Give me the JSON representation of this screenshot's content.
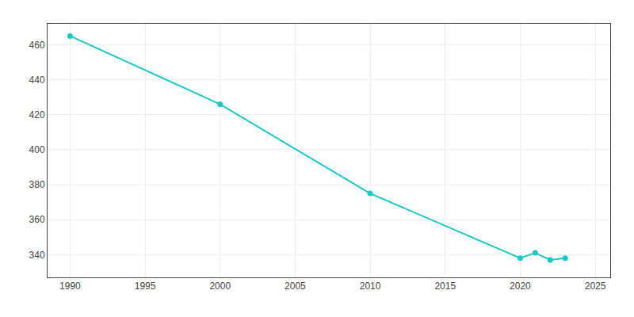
{
  "chart_data": {
    "type": "line",
    "x": [
      1990,
      2000,
      2010,
      2020,
      2021,
      2022,
      2023
    ],
    "values": [
      465,
      426,
      375,
      338,
      341,
      337,
      338
    ],
    "color": "#1BC8C8",
    "marker": "circle",
    "xlim": [
      1988.5,
      2026
    ],
    "ylim": [
      327,
      472
    ],
    "xticks": [
      1990,
      1995,
      2000,
      2005,
      2010,
      2015,
      2020,
      2025
    ],
    "yticks": [
      340,
      360,
      380,
      400,
      420,
      440,
      460
    ],
    "grid": true
  }
}
